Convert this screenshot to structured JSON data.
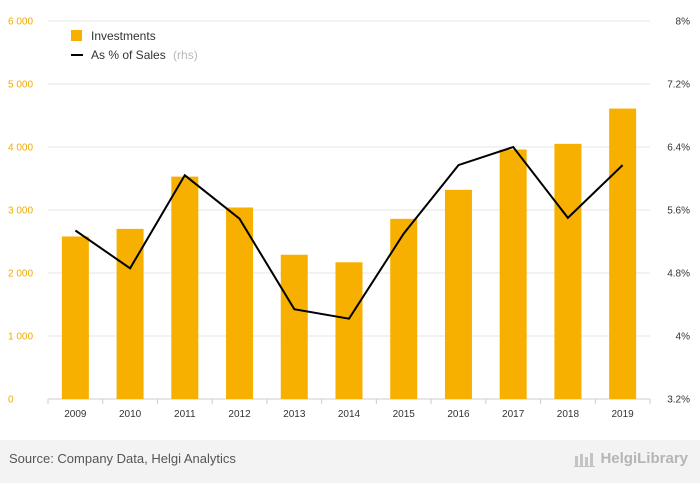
{
  "chart_data": {
    "type": "bar",
    "categories": [
      "2009",
      "2010",
      "2011",
      "2012",
      "2013",
      "2014",
      "2015",
      "2016",
      "2017",
      "2018",
      "2019"
    ],
    "series": [
      {
        "name": "Investments",
        "type": "bar",
        "axis": "left",
        "color": "#f7b000",
        "values": [
          2580,
          2700,
          3530,
          3040,
          2290,
          2170,
          2860,
          3320,
          3960,
          4050,
          4610
        ]
      },
      {
        "name": "As % of Sales",
        "name_suffix": "(rhs)",
        "type": "line",
        "axis": "right",
        "color": "#000000",
        "values": [
          5.34,
          4.86,
          6.04,
          5.49,
          4.34,
          4.22,
          5.3,
          6.17,
          6.4,
          5.5,
          6.17
        ]
      }
    ],
    "y_left": {
      "range": [
        0,
        6000
      ],
      "ticks": [
        0,
        1000,
        2000,
        3000,
        4000,
        5000,
        6000
      ],
      "tick_labels": [
        "0",
        "1 000",
        "2 000",
        "3 000",
        "4 000",
        "5 000",
        "6 000"
      ]
    },
    "y_right": {
      "range": [
        3.2,
        8
      ],
      "ticks": [
        3.2,
        4,
        4.8,
        5.6,
        6.4,
        7.2,
        8
      ],
      "tick_labels": [
        "3.2%",
        "4%",
        "4.8%",
        "5.6%",
        "6.4%",
        "7.2%",
        "8%"
      ]
    },
    "grid": true,
    "legend": "top-left"
  },
  "footer": {
    "source": "Source: Company Data, Helgi Analytics",
    "brand": "HelgiLibrary"
  }
}
